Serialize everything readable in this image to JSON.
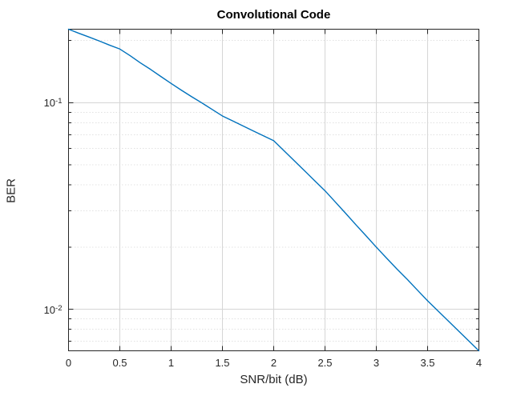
{
  "figure": {
    "background": "#ffffff"
  },
  "chart_data": {
    "type": "line",
    "title": "Convolutional Code",
    "xlabel": "SNR/bit (dB)",
    "ylabel": "BER",
    "yscale": "log",
    "grid": "major on; y minor dashed on",
    "legend": null,
    "axes": {
      "xlim": [
        0,
        4
      ],
      "ylim": [
        0.0063,
        0.227
      ],
      "x_ticks": [
        0,
        0.5,
        1,
        1.5,
        2,
        2.5,
        3,
        3.5,
        4
      ],
      "x_tick_labels": [
        "0",
        "0.5",
        "1",
        "1.5",
        "2",
        "2.5",
        "3",
        "3.5",
        "4"
      ],
      "y_major_grid": [
        0.1,
        0.01
      ],
      "y_tick_labels": [
        {
          "base": "10",
          "exp": "-1",
          "value": 0.1
        },
        {
          "base": "10",
          "exp": "-2",
          "value": 0.01
        }
      ],
      "y_minor_grid": [
        0.2,
        0.09,
        0.08,
        0.07,
        0.06,
        0.05,
        0.04,
        0.03,
        0.02,
        0.009,
        0.008,
        0.007
      ]
    },
    "series": [
      {
        "name": "BER",
        "x": [
          0.0,
          0.1,
          0.2,
          0.3,
          0.4,
          0.5,
          0.6,
          0.7,
          0.8,
          0.9,
          1.0,
          1.1,
          1.2,
          1.3,
          1.4,
          1.5,
          1.6,
          1.7,
          1.8,
          1.9,
          2.0,
          2.1,
          2.2,
          2.3,
          2.4,
          2.5,
          2.6,
          2.7,
          2.8,
          2.9,
          3.0,
          3.1,
          3.2,
          3.3,
          3.4,
          3.5,
          3.6,
          3.7,
          3.8,
          3.9,
          4.0
        ],
        "y": [
          0.227,
          0.217,
          0.208,
          0.199,
          0.19,
          0.182,
          0.169,
          0.156,
          0.145,
          0.134,
          0.124,
          0.115,
          0.107,
          0.0998,
          0.0928,
          0.0863,
          0.0817,
          0.0773,
          0.0731,
          0.0692,
          0.0655,
          0.0586,
          0.0524,
          0.0469,
          0.0419,
          0.0375,
          0.0331,
          0.0292,
          0.0257,
          0.0227,
          0.02,
          0.0177,
          0.0157,
          0.014,
          0.0124,
          0.011,
          0.00984,
          0.0088,
          0.00787,
          0.00704,
          0.0063
        ]
      }
    ],
    "colors": {
      "line": "#0072BD",
      "axis": "#262626",
      "grid_major": "#d6d6d6",
      "grid_minor": "#e2e2e2",
      "text": "#262626",
      "title": "#000000"
    }
  }
}
